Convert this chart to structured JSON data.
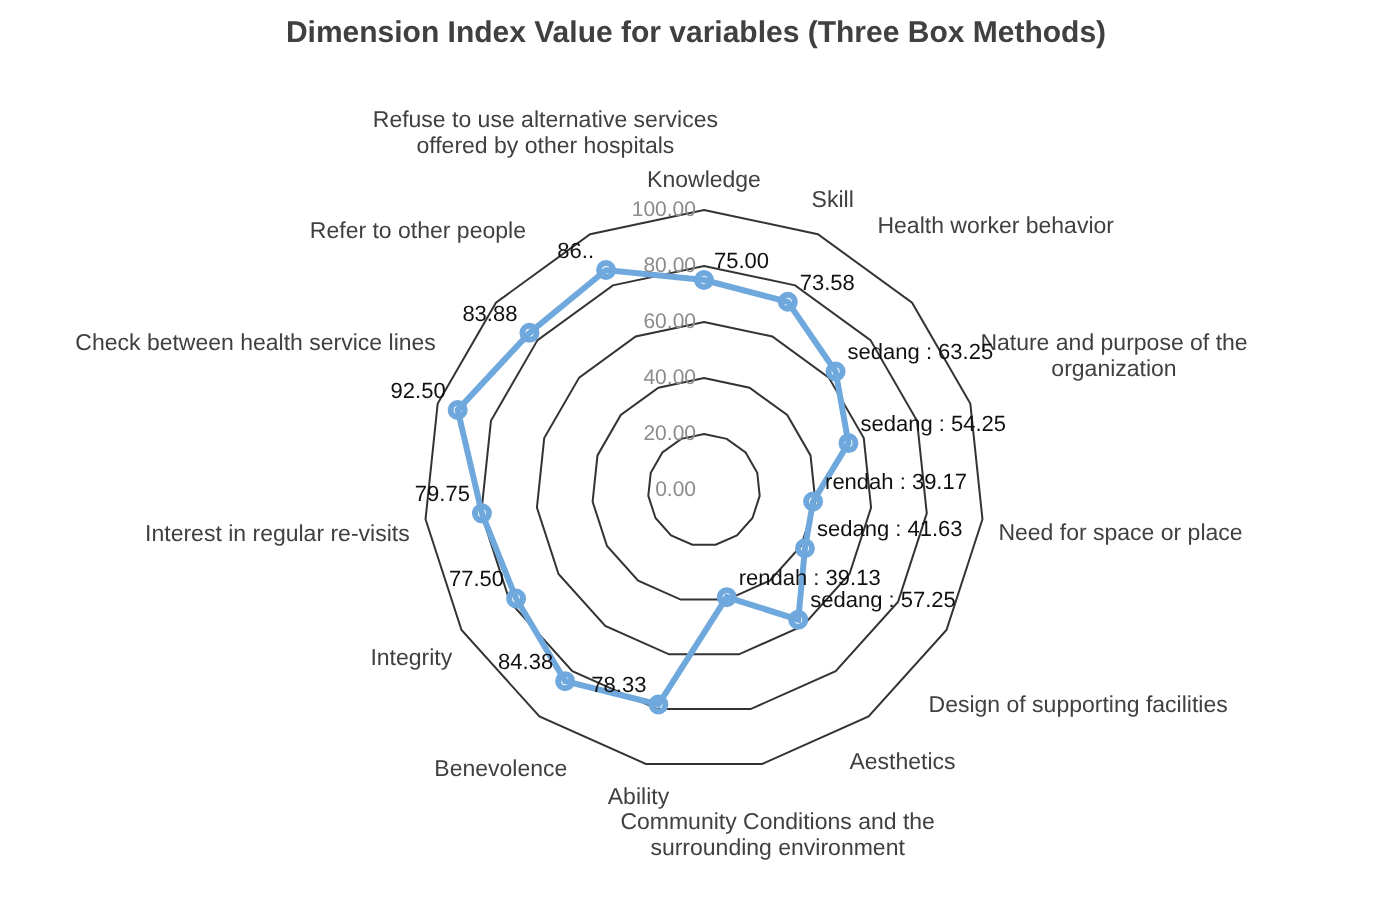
{
  "chart_data": {
    "type": "radar",
    "title": "Dimension Index Value for variables (Three Box Methods)",
    "categories": [
      "Knowledge",
      "Skill",
      "Health worker behavior",
      "Nature and purpose of the organization",
      "Need for space or place",
      "Design of supporting facilities",
      "Aesthetics",
      "Community Conditions and the surrounding environment",
      "Ability",
      "Benevolence",
      "Integrity",
      "Interest in regular re-visits",
      "Check between health service lines",
      "Refer to other people",
      "Refuse to use alternative services offered by other hospitals"
    ],
    "series": [
      {
        "color": "#6fa8dc",
        "values": [
          75.0,
          73.58,
          63.25,
          54.25,
          39.17,
          41.63,
          57.25,
          39.13,
          78.33,
          84.38,
          77.5,
          79.75,
          92.5,
          83.88,
          86
        ],
        "value_labels": [
          "75.00",
          "73.58",
          "sedang : 63.25",
          "sedang : 54.25",
          "rendah : 39.17",
          "sedang : 41.63",
          "sedang : 57.25",
          "rendah : 39.13",
          "78.33",
          "84.38",
          "77.50",
          "79.75",
          "92.50",
          "83.88",
          "86.."
        ]
      }
    ],
    "ylim": [
      0,
      100
    ],
    "yticks": [
      {
        "value": 0,
        "label": "0.00"
      },
      {
        "value": 20,
        "label": "20.00"
      },
      {
        "value": 40,
        "label": "40.00"
      },
      {
        "value": 60,
        "label": "60.00"
      },
      {
        "value": 80,
        "label": "80.00"
      },
      {
        "value": 100,
        "label": "100.00"
      }
    ],
    "grid": true,
    "marker": "circle",
    "legend": false
  }
}
